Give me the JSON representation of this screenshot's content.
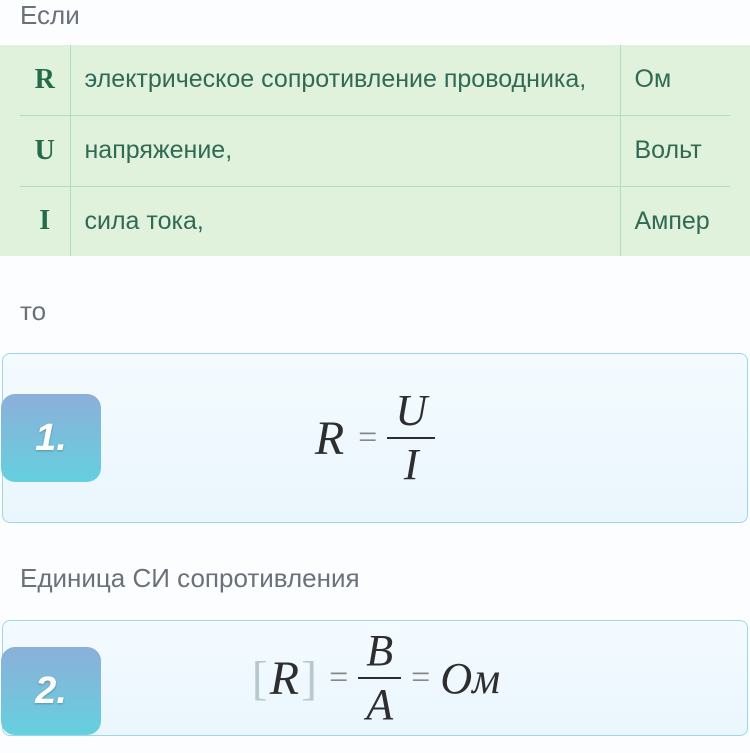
{
  "intro": "Если",
  "table": {
    "rows": [
      {
        "symbol": "R",
        "desc": "электрическое сопротивление проводника,",
        "unit": "Ом"
      },
      {
        "symbol": "U",
        "desc": "напряжение,",
        "unit": "Вольт"
      },
      {
        "symbol": "I",
        "desc": "сила тока,",
        "unit": "Ампер"
      }
    ]
  },
  "then": "то",
  "formula1": {
    "badge": "1.",
    "lhs": "R",
    "num": "U",
    "den": "I"
  },
  "unit_heading": "Единица СИ сопротивления",
  "formula2": {
    "badge": "2.",
    "lhs": "R",
    "num": "В",
    "den": "А",
    "result": "Ом"
  },
  "colors": {
    "table_bg": "#e0f2db",
    "table_border": "#aee0b9",
    "table_text": "#306a55",
    "card_border": "#9ed7e3",
    "card_bg_top": "#f4fbff",
    "card_bg_bottom": "#eaf6fd",
    "badge_top": "#8cafd9",
    "badge_bottom": "#65d0df",
    "body_text": "#6b717a"
  }
}
